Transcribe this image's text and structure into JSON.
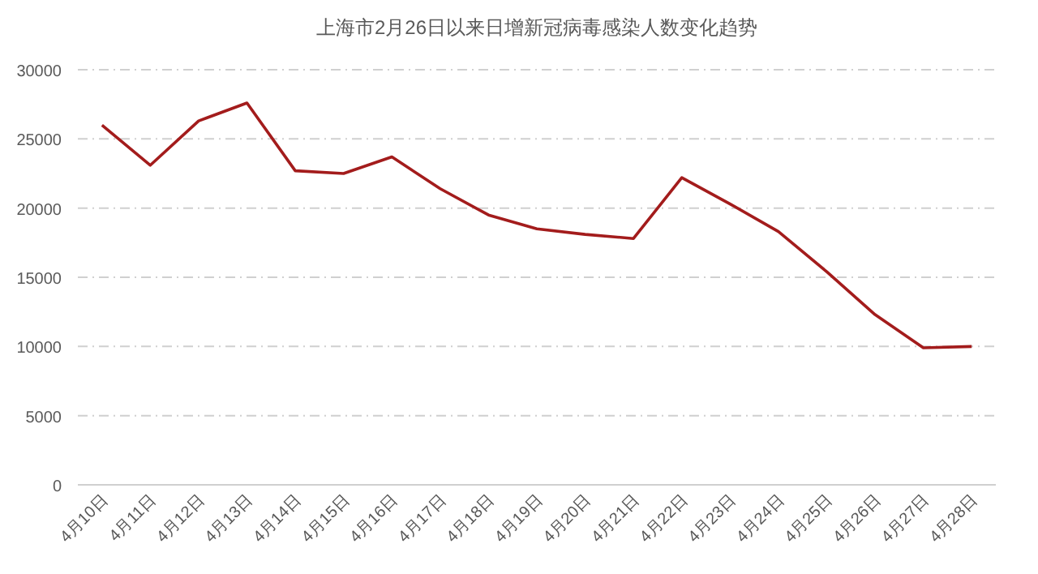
{
  "chart_data": {
    "type": "line",
    "title": "上海市2月26日以来日增新冠病毒感染人数变化趋势",
    "categories": [
      "4月10日",
      "4月11日",
      "4月12日",
      "4月13日",
      "4月14日",
      "4月15日",
      "4月16日",
      "4月17日",
      "4月18日",
      "4月19日",
      "4月20日",
      "4月21日",
      "4月22日",
      "4月23日",
      "4月24日",
      "4月25日",
      "4月26日",
      "4月27日",
      "4月28日"
    ],
    "values": [
      26000,
      23100,
      26300,
      27600,
      22700,
      22500,
      23700,
      21400,
      19500,
      18500,
      18100,
      17800,
      22200,
      20300,
      18300,
      15400,
      12300,
      9900,
      10000
    ],
    "color": "#a31c1c",
    "ylim": [
      0,
      30000
    ],
    "yticks": [
      0,
      5000,
      10000,
      15000,
      20000,
      25000,
      30000
    ],
    "grid": "y"
  }
}
